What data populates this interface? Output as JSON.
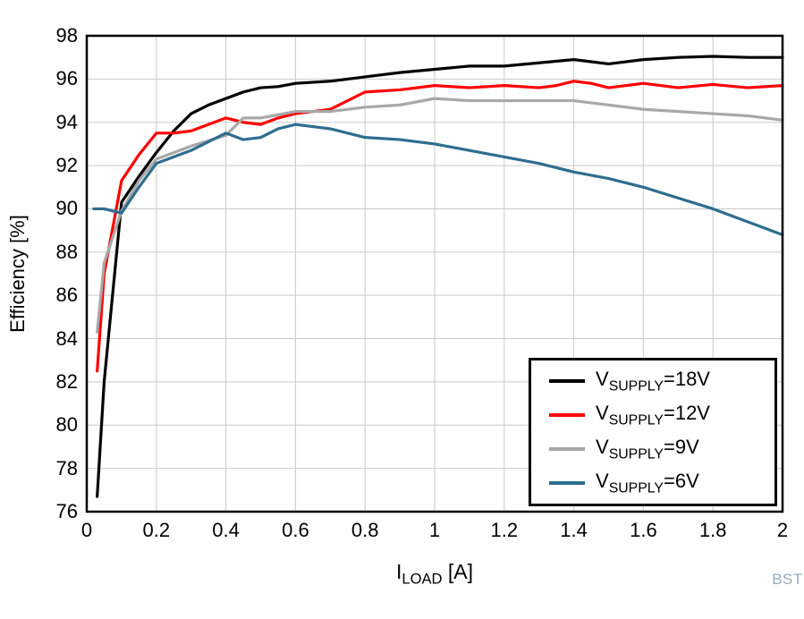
{
  "chart_data": {
    "type": "line",
    "title": "",
    "ylabel": "Efficiency [%]",
    "xlabel_parts": {
      "main": "I",
      "sub": "LOAD",
      "suffix": " [A]"
    },
    "xlim": [
      0,
      2
    ],
    "ylim": [
      76,
      98
    ],
    "grid": true,
    "legend_position": "bottom-right",
    "x_ticks": [
      0,
      0.2,
      0.4,
      0.6,
      0.8,
      1,
      1.2,
      1.4,
      1.6,
      1.8,
      2
    ],
    "x_tick_labels": [
      "0",
      "0.2",
      "0.4",
      "0.6",
      "0.8",
      "1",
      "1.2",
      "1.4",
      "1.6",
      "1.8",
      "2"
    ],
    "y_ticks": [
      76,
      78,
      80,
      82,
      84,
      86,
      88,
      90,
      92,
      94,
      96,
      98
    ],
    "y_tick_labels": [
      "76",
      "78",
      "80",
      "82",
      "84",
      "86",
      "88",
      "90",
      "92",
      "94",
      "96",
      "98"
    ],
    "series": [
      {
        "name_parts": {
          "main": "V",
          "sub": "SUPPLY",
          "suffix": "=18V"
        },
        "color": "#000000",
        "x": [
          0.03,
          0.05,
          0.1,
          0.15,
          0.2,
          0.25,
          0.3,
          0.35,
          0.4,
          0.45,
          0.5,
          0.55,
          0.6,
          0.7,
          0.8,
          0.9,
          1.0,
          1.1,
          1.2,
          1.3,
          1.4,
          1.45,
          1.5,
          1.6,
          1.7,
          1.8,
          1.9,
          2.0
        ],
        "y": [
          76.7,
          82.0,
          90.3,
          91.5,
          92.6,
          93.6,
          94.4,
          94.8,
          95.1,
          95.4,
          95.6,
          95.65,
          95.8,
          95.9,
          96.1,
          96.3,
          96.45,
          96.6,
          96.6,
          96.75,
          96.9,
          96.8,
          96.7,
          96.9,
          97.0,
          97.05,
          97.0,
          97.0
        ]
      },
      {
        "name_parts": {
          "main": "V",
          "sub": "SUPPLY",
          "suffix": "=12V"
        },
        "color": "#ff0000",
        "x": [
          0.03,
          0.05,
          0.1,
          0.15,
          0.2,
          0.25,
          0.3,
          0.35,
          0.4,
          0.45,
          0.5,
          0.55,
          0.6,
          0.7,
          0.75,
          0.8,
          0.9,
          1.0,
          1.1,
          1.2,
          1.3,
          1.35,
          1.4,
          1.45,
          1.5,
          1.6,
          1.7,
          1.8,
          1.9,
          2.0
        ],
        "y": [
          82.5,
          87.0,
          91.3,
          92.5,
          93.5,
          93.5,
          93.6,
          93.9,
          94.2,
          94.0,
          93.9,
          94.2,
          94.4,
          94.6,
          95.0,
          95.4,
          95.5,
          95.7,
          95.6,
          95.7,
          95.6,
          95.7,
          95.9,
          95.8,
          95.6,
          95.8,
          95.6,
          95.75,
          95.6,
          95.7
        ]
      },
      {
        "name_parts": {
          "main": "V",
          "sub": "SUPPLY",
          "suffix": "=9V"
        },
        "color": "#a8a8a8",
        "x": [
          0.03,
          0.05,
          0.1,
          0.15,
          0.2,
          0.3,
          0.4,
          0.45,
          0.5,
          0.6,
          0.7,
          0.8,
          0.9,
          1.0,
          1.1,
          1.2,
          1.3,
          1.4,
          1.5,
          1.6,
          1.7,
          1.8,
          1.9,
          2.0
        ],
        "y": [
          84.3,
          87.5,
          89.9,
          91.3,
          92.3,
          92.9,
          93.4,
          94.2,
          94.2,
          94.5,
          94.5,
          94.7,
          94.8,
          95.1,
          95.0,
          95.0,
          95.0,
          95.0,
          94.8,
          94.6,
          94.5,
          94.4,
          94.3,
          94.1
        ]
      },
      {
        "name_parts": {
          "main": "V",
          "sub": "SUPPLY",
          "suffix": "=6V"
        },
        "color": "#2e6d8e",
        "x": [
          0.02,
          0.05,
          0.1,
          0.15,
          0.2,
          0.25,
          0.3,
          0.35,
          0.4,
          0.45,
          0.5,
          0.55,
          0.6,
          0.65,
          0.7,
          0.8,
          0.9,
          1.0,
          1.1,
          1.2,
          1.3,
          1.4,
          1.5,
          1.6,
          1.7,
          1.8,
          1.9,
          2.0
        ],
        "y": [
          90.0,
          90.0,
          89.8,
          91.0,
          92.1,
          92.4,
          92.7,
          93.1,
          93.5,
          93.2,
          93.3,
          93.7,
          93.9,
          93.8,
          93.7,
          93.3,
          93.2,
          93.0,
          92.7,
          92.4,
          92.1,
          91.7,
          91.4,
          91.0,
          90.5,
          90.0,
          89.4,
          88.8
        ]
      }
    ],
    "grid_color": "#c9c9c9",
    "frame_color": "#000000"
  },
  "footer": {
    "code": "BSTI"
  }
}
